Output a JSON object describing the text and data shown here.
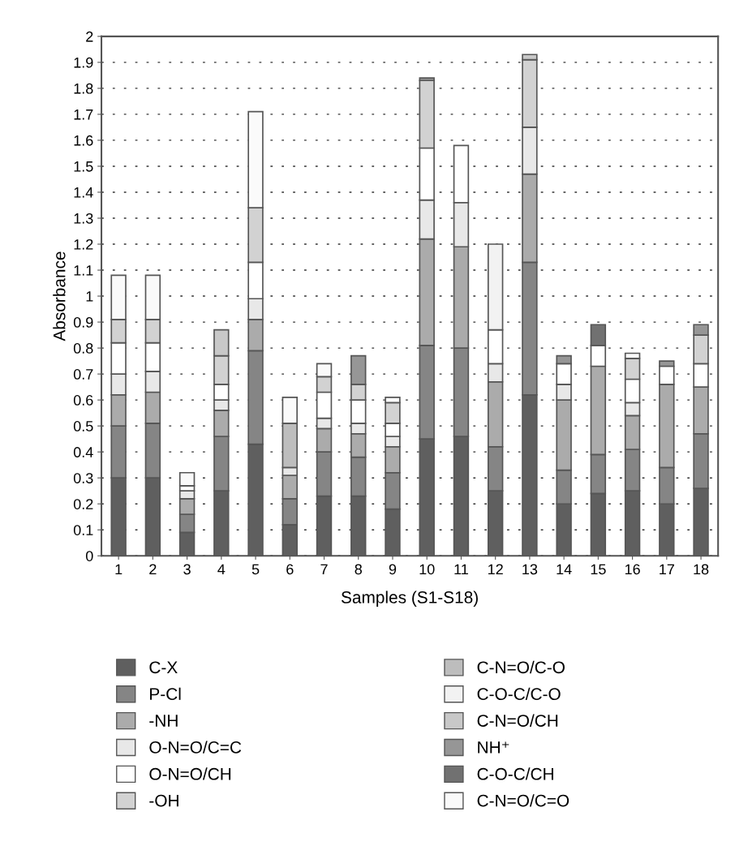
{
  "chart_data": {
    "type": "bar",
    "stacked": true,
    "xlabel": "Samples (S1-S18)",
    "ylabel": "Absorbance",
    "categories": [
      "1",
      "2",
      "3",
      "4",
      "5",
      "6",
      "7",
      "8",
      "9",
      "10",
      "11",
      "12",
      "13",
      "14",
      "15",
      "16",
      "17",
      "18"
    ],
    "ylim": [
      0,
      2
    ],
    "yticks": [
      0,
      0.1,
      0.2,
      0.3,
      0.4,
      0.5,
      0.6,
      0.7,
      0.8,
      0.9,
      1,
      1.1,
      1.2,
      1.3,
      1.4,
      1.5,
      1.6,
      1.7,
      1.8,
      1.9,
      2
    ],
    "grid": "y",
    "legend": "bottom",
    "series": [
      {
        "name": "C-X",
        "color": "#5f5f5f",
        "values": [
          0.3,
          0.3,
          0.09,
          0.25,
          0.43,
          0.12,
          0.23,
          0.23,
          0.18,
          0.45,
          0.46,
          0.25,
          0.62,
          0.2,
          0.24,
          0.25,
          0.2,
          0.26
        ]
      },
      {
        "name": "P-Cl",
        "color": "#858585",
        "values": [
          0.2,
          0.21,
          0.07,
          0.21,
          0.36,
          0.1,
          0.17,
          0.15,
          0.14,
          0.36,
          0.34,
          0.17,
          0.51,
          0.13,
          0.15,
          0.16,
          0.14,
          0.21
        ]
      },
      {
        "name": "-NH",
        "color": "#ababab",
        "values": [
          0.12,
          0.12,
          0.06,
          0.1,
          0.12,
          0.09,
          0.09,
          0.09,
          0.1,
          0.41,
          0.39,
          0.25,
          0.34,
          0.27,
          0.34,
          0.13,
          0.32,
          0.18
        ]
      },
      {
        "name": "O-N=O/C=C",
        "color": "#e8e8e8",
        "values": [
          0.08,
          0.08,
          0.03,
          0.04,
          0.08,
          0.03,
          0.04,
          0.04,
          0.04,
          0.15,
          0.17,
          0.07,
          0.18,
          0.06,
          null,
          0.05,
          null,
          null
        ]
      },
      {
        "name": "O-N=O/CH",
        "color": "#ffffff",
        "values": [
          0.12,
          0.11,
          0.02,
          0.06,
          0.14,
          null,
          0.1,
          0.09,
          0.05,
          0.2,
          0.22,
          0.13,
          null,
          0.08,
          0.08,
          0.09,
          0.07,
          0.09
        ]
      },
      {
        "name": "-OH",
        "color": "#d2d2d2",
        "values": [
          0.09,
          0.09,
          null,
          0.11,
          0.21,
          null,
          0.06,
          0.06,
          0.08,
          0.26,
          null,
          null,
          0.26,
          null,
          null,
          0.08,
          null,
          0.11
        ]
      },
      {
        "name": "C-N=O/C-O",
        "color": "#bdbdbd",
        "values": [
          null,
          null,
          null,
          null,
          null,
          0.17,
          null,
          null,
          null,
          null,
          null,
          null,
          null,
          null,
          null,
          null,
          null,
          null
        ]
      },
      {
        "name": "C-O-C/C-O",
        "color": "#f2f2f2",
        "values": [
          null,
          null,
          null,
          null,
          null,
          null,
          null,
          null,
          null,
          null,
          null,
          0.33,
          null,
          null,
          null,
          null,
          null,
          null
        ]
      },
      {
        "name": "C-N=O/CH",
        "color": "#c8c8c8",
        "values": [
          null,
          null,
          null,
          0.1,
          null,
          null,
          null,
          null,
          null,
          null,
          null,
          null,
          0.02,
          null,
          null,
          null,
          null,
          null
        ]
      },
      {
        "name": "NH⁺",
        "color": "#969696",
        "values": [
          null,
          null,
          null,
          null,
          null,
          null,
          null,
          0.11,
          null,
          0.01,
          null,
          null,
          null,
          0.03,
          null,
          null,
          0.02,
          0.04
        ]
      },
      {
        "name": "C-O-C/CH",
        "color": "#717171",
        "values": [
          null,
          null,
          null,
          null,
          null,
          null,
          null,
          null,
          null,
          null,
          null,
          null,
          null,
          null,
          0.08,
          null,
          null,
          null
        ]
      },
      {
        "name": "C-N=O/C=O",
        "color": "#fafafa",
        "values": [
          0.17,
          0.17,
          0.05,
          null,
          0.37,
          0.1,
          0.05,
          null,
          0.02,
          null,
          null,
          null,
          null,
          null,
          null,
          0.02,
          null,
          null
        ]
      }
    ]
  }
}
